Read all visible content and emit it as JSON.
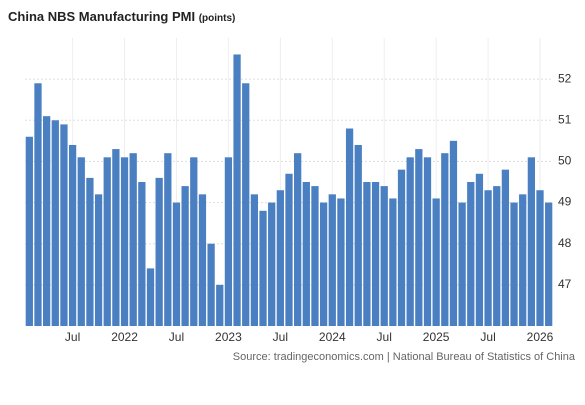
{
  "chart_data": {
    "type": "bar",
    "title": "China NBS Manufacturing PMI",
    "unit": "(points)",
    "source": "Source: tradingeconomics.com | National Bureau of Statistics of China",
    "categories": [
      null,
      null,
      null,
      null,
      null,
      "Jul",
      null,
      null,
      null,
      null,
      null,
      "2022",
      null,
      null,
      null,
      null,
      null,
      "Jul",
      null,
      null,
      null,
      null,
      null,
      "2023",
      null,
      null,
      null,
      null,
      null,
      "Jul",
      null,
      null,
      null,
      null,
      null,
      "2024",
      null,
      null,
      null,
      null,
      null,
      "Jul",
      null,
      null,
      null,
      null,
      null,
      "2025",
      null,
      null,
      null,
      null,
      null,
      "Jul",
      null,
      null,
      null,
      null,
      null,
      "2026",
      null
    ],
    "values": [
      50.6,
      51.9,
      51.1,
      51.0,
      50.9,
      50.4,
      50.1,
      49.6,
      49.2,
      50.1,
      50.3,
      50.1,
      50.2,
      49.5,
      47.4,
      49.6,
      50.2,
      49.0,
      49.4,
      50.1,
      49.2,
      48.0,
      47.0,
      50.1,
      52.6,
      51.9,
      49.2,
      48.8,
      49.0,
      49.3,
      49.7,
      50.2,
      49.5,
      49.4,
      49.0,
      49.2,
      49.1,
      50.8,
      50.4,
      49.5,
      49.5,
      49.4,
      49.1,
      49.8,
      50.1,
      50.3,
      50.1,
      49.1,
      50.2,
      50.5,
      49.0,
      49.5,
      49.7,
      49.3,
      49.4,
      49.8,
      49.0,
      49.2,
      50.1,
      49.3,
      49.0
    ],
    "color": "#4a7fc1",
    "ylim": [
      46,
      53
    ],
    "yticks": [
      47,
      48,
      49,
      50,
      51,
      52
    ],
    "grid": true
  }
}
